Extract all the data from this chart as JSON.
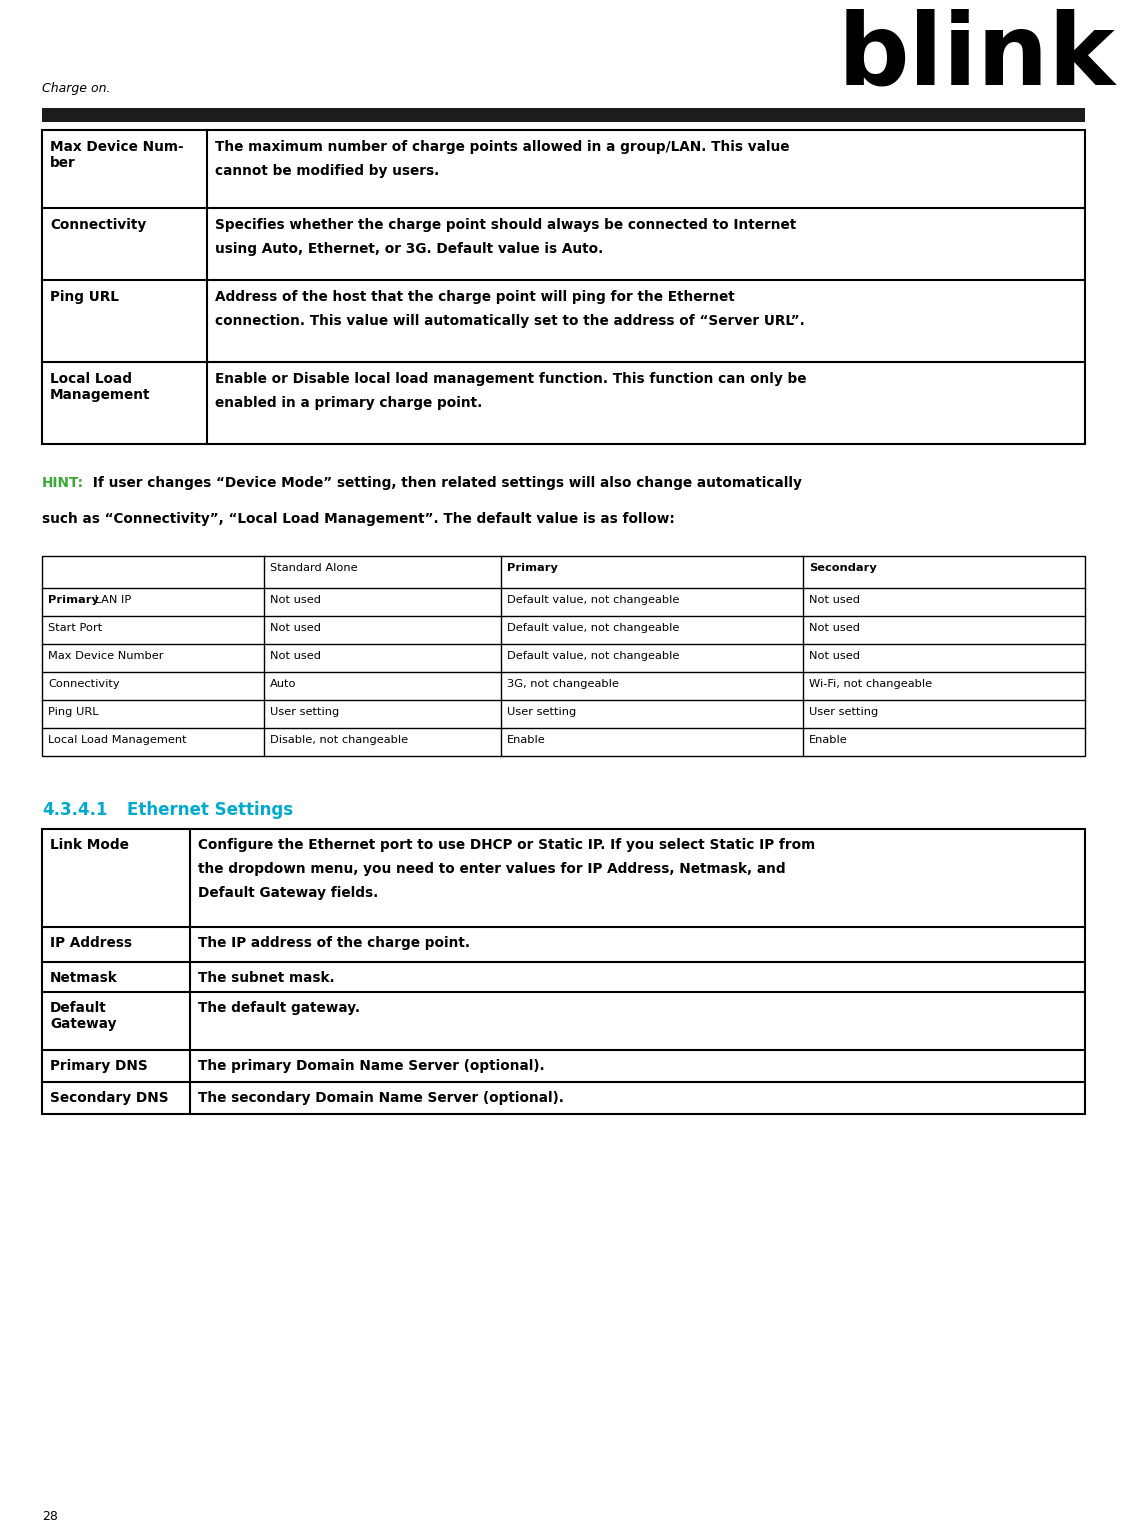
{
  "page_number": "28",
  "header_text": "Charge on.",
  "logo_text": "blink",
  "hint_color": "#3aaa35",
  "hint_label": "HINT:",
  "section_title_num": "4.3.4.1",
  "section_title_rest": "    Ethernet Settings",
  "section_color": "#00aacc",
  "table1_rows": [
    [
      "Max Device Num-\nber",
      "The maximum number of charge points allowed in a group/LAN. This value\ncannot be modified by users."
    ],
    [
      "Connectivity",
      "Specifies whether the charge point should always be connected to Internet\nusing Auto, Ethernet, or 3G. Default value is Auto."
    ],
    [
      "Ping URL",
      "Address of the host that the charge point will ping for the Ethernet\nconnection. This value will automatically set to the address of “Server URL”."
    ],
    [
      "Local Load\nManagement",
      "Enable or Disable local load management function. This function can only be\nenabled in a primary charge point."
    ]
  ],
  "table2_header": [
    "",
    "Standard Alone",
    "Primary",
    "Secondary"
  ],
  "table2_header_bold": [
    false,
    false,
    true,
    true
  ],
  "table2_rows": [
    [
      "Primary LAN IP",
      "Not used",
      "Default value, not changeable",
      "Not used"
    ],
    [
      "Start Port",
      "Not used",
      "Default value, not changeable",
      "Not used"
    ],
    [
      "Max Device Number",
      "Not used",
      "Default value, not changeable",
      "Not used"
    ],
    [
      "Connectivity",
      "Auto",
      "3G, not changeable",
      "Wi-Fi, not changeable"
    ],
    [
      "Ping URL",
      "User setting",
      "User setting",
      "User setting"
    ],
    [
      "Local Load Management",
      "Disable, not changeable",
      "Enable",
      "Enable"
    ]
  ],
  "table2_col0_bold": [
    true,
    false,
    false,
    false,
    false,
    false
  ],
  "table3_rows": [
    [
      "Link Mode",
      "Configure the Ethernet port to use DHCP or Static IP. If you select Static IP from\nthe dropdown menu, you need to enter values for IP Address, Netmask, and\nDefault Gateway fields."
    ],
    [
      "IP Address",
      "The IP address of the charge point."
    ],
    [
      "Netmask",
      "The subnet mask."
    ],
    [
      "Default\nGateway",
      "The default gateway."
    ],
    [
      "Primary DNS",
      "The primary Domain Name Server (optional)."
    ],
    [
      "Secondary DNS",
      "The secondary Domain Name Server (optional)."
    ]
  ]
}
